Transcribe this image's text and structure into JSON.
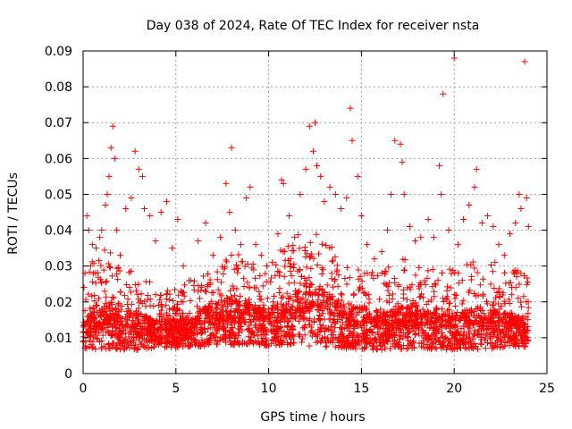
{
  "chart_data": {
    "type": "scatter",
    "title": "Day 038 of 2024, Rate Of TEC Index for receiver nsta",
    "xlabel": "GPS time / hours",
    "ylabel": "ROTI / TECUs",
    "xlim": [
      0,
      25
    ],
    "ylim": [
      0,
      0.09
    ],
    "xticks": [
      0,
      5,
      10,
      15,
      20,
      25
    ],
    "xtick_labels": [
      "0",
      "5",
      "10",
      "15",
      "20",
      "25"
    ],
    "yticks": [
      0,
      0.01,
      0.02,
      0.03,
      0.04,
      0.05,
      0.06,
      0.07,
      0.08,
      0.09
    ],
    "ytick_labels": [
      "0",
      "0.01",
      "0.02",
      "0.03",
      "0.04",
      "0.05",
      "0.06",
      "0.07",
      "0.08",
      "0.09"
    ],
    "grid": true,
    "marker": "+",
    "color": "#ff0000",
    "series": [
      {
        "name": "ROTI",
        "points": [
          [
            0.1,
            0.028
          ],
          [
            0.2,
            0.044
          ],
          [
            0.3,
            0.04
          ],
          [
            0.4,
            0.03
          ],
          [
            0.5,
            0.036
          ],
          [
            0.7,
            0.035
          ],
          [
            0.9,
            0.038
          ],
          [
            1.0,
            0.04
          ],
          [
            1.2,
            0.047
          ],
          [
            1.3,
            0.05
          ],
          [
            1.4,
            0.055
          ],
          [
            1.5,
            0.063
          ],
          [
            1.6,
            0.069
          ],
          [
            1.7,
            0.06
          ],
          [
            1.8,
            0.04
          ],
          [
            2.0,
            0.033
          ],
          [
            2.3,
            0.046
          ],
          [
            2.6,
            0.049
          ],
          [
            2.8,
            0.062
          ],
          [
            3.0,
            0.057
          ],
          [
            3.2,
            0.055
          ],
          [
            3.3,
            0.046
          ],
          [
            3.6,
            0.044
          ],
          [
            3.9,
            0.037
          ],
          [
            4.2,
            0.045
          ],
          [
            4.5,
            0.048
          ],
          [
            4.8,
            0.035
          ],
          [
            5.1,
            0.043
          ],
          [
            5.4,
            0.03
          ],
          [
            5.8,
            0.026
          ],
          [
            6.2,
            0.037
          ],
          [
            6.6,
            0.042
          ],
          [
            7.0,
            0.033
          ],
          [
            7.4,
            0.038
          ],
          [
            7.7,
            0.053
          ],
          [
            7.9,
            0.045
          ],
          [
            8.0,
            0.063
          ],
          [
            8.2,
            0.04
          ],
          [
            8.5,
            0.036
          ],
          [
            8.8,
            0.049
          ],
          [
            9.0,
            0.052
          ],
          [
            9.3,
            0.036
          ],
          [
            9.6,
            0.033
          ],
          [
            9.9,
            0.03
          ],
          [
            10.2,
            0.031
          ],
          [
            10.5,
            0.039
          ],
          [
            10.7,
            0.054
          ],
          [
            10.8,
            0.053
          ],
          [
            11.1,
            0.044
          ],
          [
            11.4,
            0.038
          ],
          [
            11.7,
            0.05
          ],
          [
            12.0,
            0.057
          ],
          [
            12.2,
            0.069
          ],
          [
            12.4,
            0.062
          ],
          [
            12.5,
            0.07
          ],
          [
            12.6,
            0.058
          ],
          [
            12.8,
            0.055
          ],
          [
            13.0,
            0.048
          ],
          [
            13.3,
            0.052
          ],
          [
            13.6,
            0.05
          ],
          [
            13.9,
            0.046
          ],
          [
            14.2,
            0.049
          ],
          [
            14.4,
            0.074
          ],
          [
            14.5,
            0.065
          ],
          [
            14.8,
            0.055
          ],
          [
            15.0,
            0.044
          ],
          [
            15.3,
            0.036
          ],
          [
            15.7,
            0.032
          ],
          [
            16.1,
            0.034
          ],
          [
            16.4,
            0.04
          ],
          [
            16.6,
            0.05
          ],
          [
            16.8,
            0.065
          ],
          [
            17.1,
            0.064
          ],
          [
            17.2,
            0.059
          ],
          [
            17.3,
            0.05
          ],
          [
            17.6,
            0.041
          ],
          [
            17.9,
            0.037
          ],
          [
            18.2,
            0.038
          ],
          [
            18.6,
            0.043
          ],
          [
            18.9,
            0.038
          ],
          [
            19.2,
            0.058
          ],
          [
            19.3,
            0.05
          ],
          [
            19.4,
            0.078
          ],
          [
            19.7,
            0.04
          ],
          [
            20.0,
            0.088
          ],
          [
            20.2,
            0.036
          ],
          [
            20.5,
            0.043
          ],
          [
            20.8,
            0.047
          ],
          [
            21.1,
            0.052
          ],
          [
            21.2,
            0.057
          ],
          [
            21.5,
            0.042
          ],
          [
            21.8,
            0.044
          ],
          [
            22.1,
            0.041
          ],
          [
            22.4,
            0.036
          ],
          [
            22.7,
            0.033
          ],
          [
            23.0,
            0.039
          ],
          [
            23.3,
            0.042
          ],
          [
            23.5,
            0.05
          ],
          [
            23.6,
            0.046
          ],
          [
            23.8,
            0.087
          ],
          [
            23.9,
            0.049
          ],
          [
            24.0,
            0.041
          ]
        ],
        "density_profile": {
          "x": [
            0,
            0.5,
            1.0,
            1.5,
            2.0,
            3.0,
            4.0,
            5.0,
            6.0,
            7.0,
            8.0,
            9.0,
            10.0,
            11.0,
            12.0,
            12.5,
            13.0,
            14.0,
            15.0,
            16.0,
            17.0,
            18.0,
            19.0,
            20.0,
            21.0,
            22.0,
            23.0,
            24.0
          ],
          "band_low": [
            0.006,
            0.005,
            0.005,
            0.005,
            0.005,
            0.005,
            0.006,
            0.006,
            0.006,
            0.006,
            0.006,
            0.006,
            0.006,
            0.006,
            0.005,
            0.005,
            0.005,
            0.005,
            0.005,
            0.005,
            0.005,
            0.005,
            0.005,
            0.005,
            0.005,
            0.005,
            0.006,
            0.006
          ],
          "band_median": [
            0.012,
            0.013,
            0.014,
            0.015,
            0.013,
            0.013,
            0.012,
            0.012,
            0.013,
            0.015,
            0.016,
            0.015,
            0.014,
            0.016,
            0.018,
            0.019,
            0.017,
            0.015,
            0.014,
            0.013,
            0.014,
            0.014,
            0.013,
            0.013,
            0.014,
            0.014,
            0.013,
            0.012
          ],
          "band_high": [
            0.025,
            0.032,
            0.034,
            0.036,
            0.03,
            0.028,
            0.024,
            0.024,
            0.027,
            0.03,
            0.034,
            0.032,
            0.03,
            0.037,
            0.04,
            0.042,
            0.038,
            0.032,
            0.029,
            0.028,
            0.033,
            0.031,
            0.03,
            0.029,
            0.032,
            0.033,
            0.03,
            0.027
          ]
        }
      }
    ]
  }
}
